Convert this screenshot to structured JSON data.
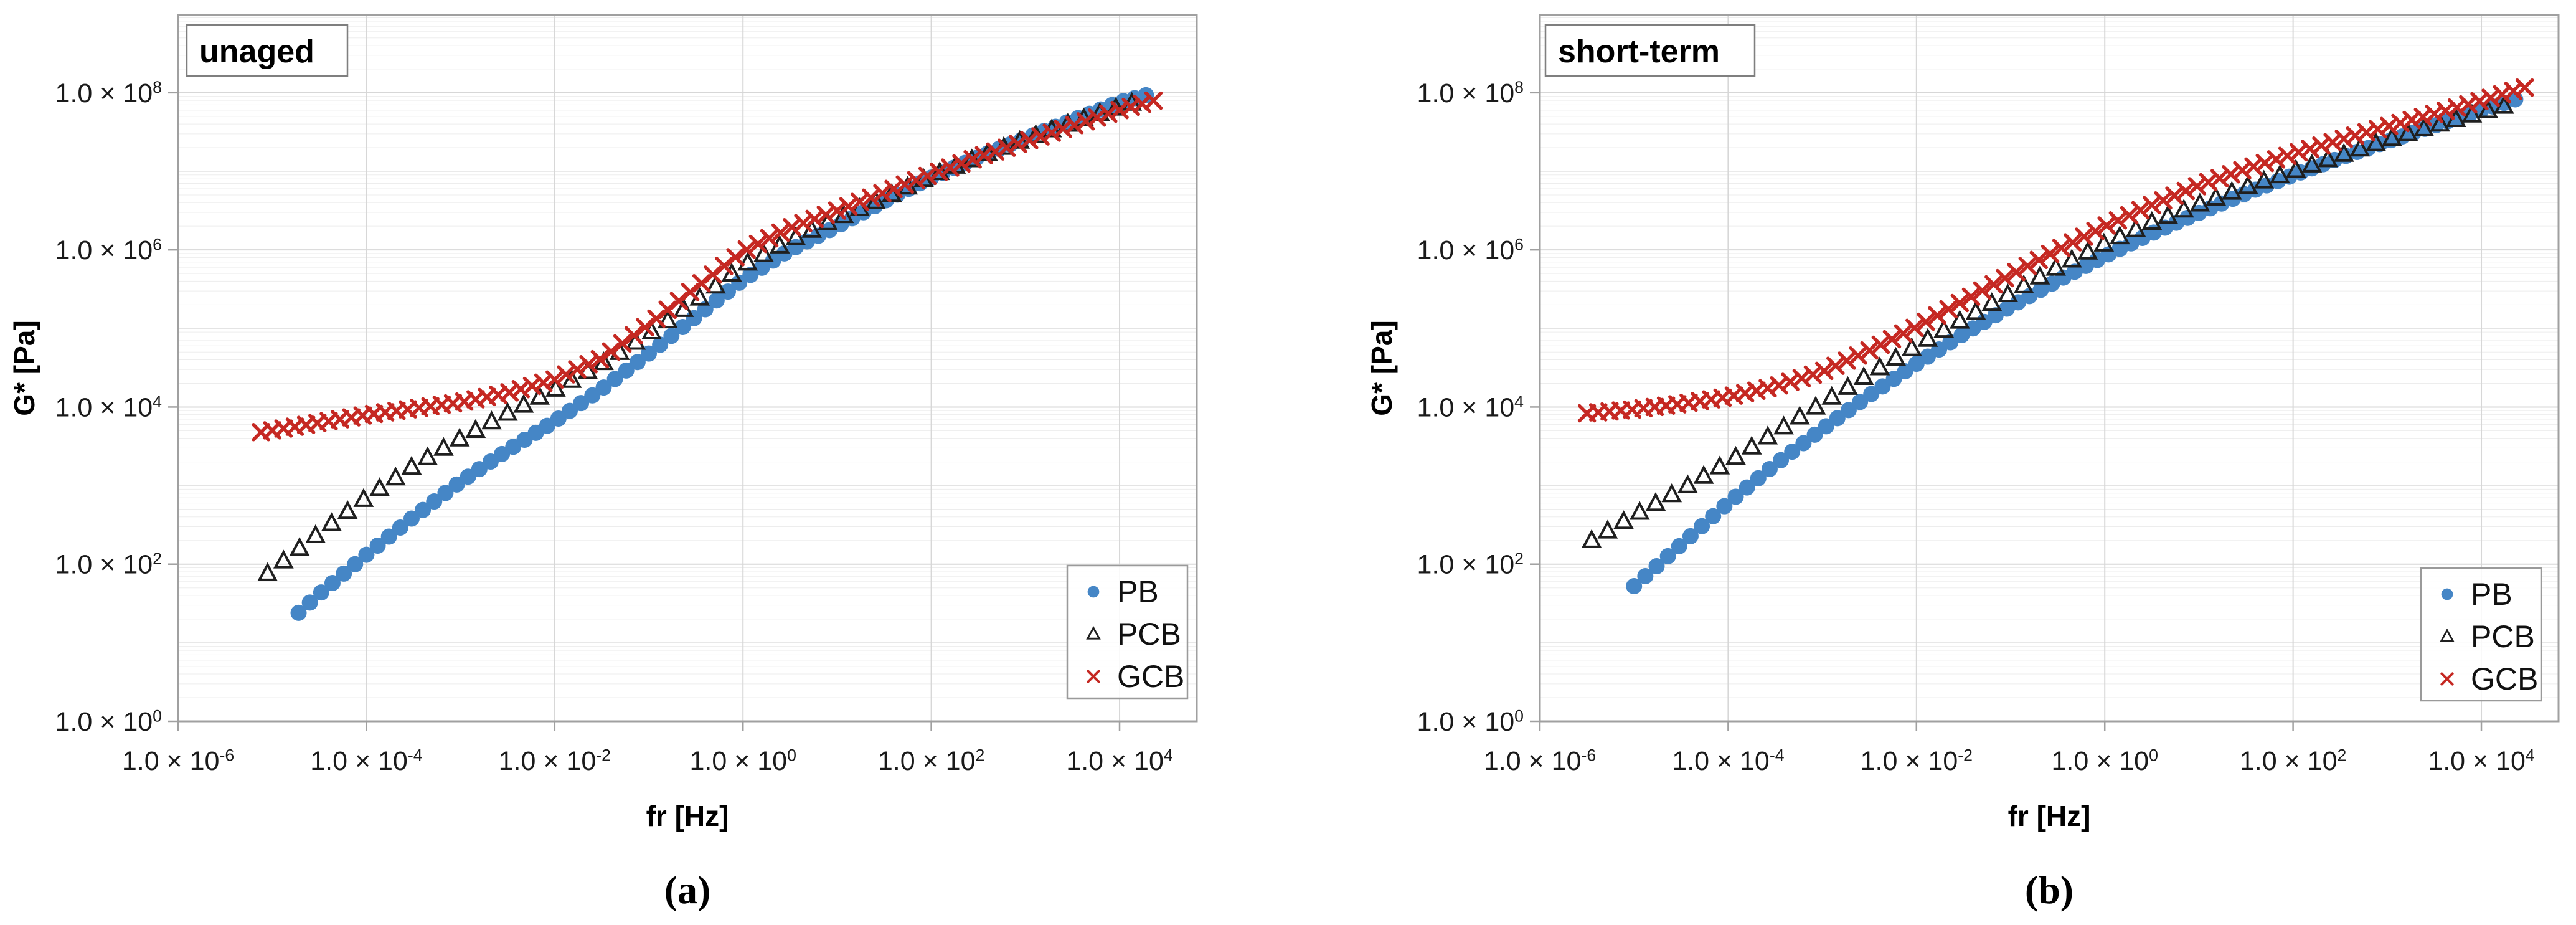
{
  "figure": {
    "captions": [
      {
        "label": "(a)"
      },
      {
        "label": "(b)"
      }
    ]
  },
  "shared": {
    "x_axis_title": "fr [Hz]",
    "y_axis_title": "G* [Pa]",
    "tick_mantissa": "1.0 × 10",
    "legend_labels": [
      "PB",
      "PCB",
      "GCB"
    ],
    "colors": {
      "pb_blue": "#4586C6",
      "pcb_black": "#1F1F1F",
      "gcb_red": "#C52822",
      "grid_minor": "#ededed",
      "grid_odd": "#e4e4e4",
      "grid_major": "#d7d7d7",
      "border": "#a0a0a0",
      "text": "#1a1a1a"
    }
  },
  "chart_data": [
    {
      "type": "scatter",
      "title": "unaged",
      "xlabel": "fr [Hz]",
      "ylabel": "G* [Pa]",
      "x_scale": "log10",
      "y_scale": "log10",
      "xlim_exp": [
        -6,
        4.82
      ],
      "ylim_exp": [
        0,
        8.99
      ],
      "x_ticks_exp": [
        -6,
        -4,
        -2,
        0,
        2,
        4
      ],
      "y_ticks_exp": [
        0,
        2,
        4,
        6,
        8
      ],
      "minor_log_gridlines": true,
      "legend_position": "bottom-right",
      "series": [
        {
          "name": "PB",
          "marker": "circle",
          "color": "#4586C6",
          "step_log10": 0.12,
          "anchors_log10": [
            [
              -4.72,
              1.38
            ],
            [
              -4.5,
              1.62
            ],
            [
              -4.0,
              2.12
            ],
            [
              -3.5,
              2.6
            ],
            [
              -3.0,
              3.05
            ],
            [
              -2.5,
              3.45
            ],
            [
              -2.0,
              3.82
            ],
            [
              -1.5,
              4.23
            ],
            [
              -1.0,
              4.68
            ],
            [
              -0.5,
              5.15
            ],
            [
              0.0,
              5.62
            ],
            [
              0.5,
              6.0
            ],
            [
              1.0,
              6.3
            ],
            [
              1.5,
              6.62
            ],
            [
              2.0,
              6.92
            ],
            [
              2.5,
              7.18
            ],
            [
              3.0,
              7.42
            ],
            [
              3.5,
              7.65
            ],
            [
              4.0,
              7.88
            ],
            [
              4.38,
              8.0
            ]
          ]
        },
        {
          "name": "PCB",
          "marker": "triangle-open",
          "color": "#1F1F1F",
          "step_log10": 0.17,
          "anchors_log10": [
            [
              -5.05,
              1.88
            ],
            [
              -4.5,
              2.4
            ],
            [
              -4.0,
              2.85
            ],
            [
              -3.5,
              3.25
            ],
            [
              -3.0,
              3.6
            ],
            [
              -2.5,
              3.92
            ],
            [
              -2.0,
              4.22
            ],
            [
              -1.5,
              4.55
            ],
            [
              -1.0,
              4.93
            ],
            [
              -0.5,
              5.35
            ],
            [
              0.0,
              5.8
            ],
            [
              0.5,
              6.12
            ],
            [
              1.0,
              6.4
            ],
            [
              1.5,
              6.66
            ],
            [
              2.0,
              6.94
            ],
            [
              2.5,
              7.18
            ],
            [
              3.0,
              7.41
            ],
            [
              3.5,
              7.62
            ],
            [
              4.0,
              7.82
            ],
            [
              4.28,
              7.92
            ]
          ]
        },
        {
          "name": "GCB",
          "marker": "x",
          "color": "#C52822",
          "step_log10": 0.12,
          "anchors_log10": [
            [
              -5.12,
              3.68
            ],
            [
              -4.5,
              3.8
            ],
            [
              -4.0,
              3.9
            ],
            [
              -3.5,
              3.98
            ],
            [
              -3.0,
              4.06
            ],
            [
              -2.5,
              4.18
            ],
            [
              -2.0,
              4.35
            ],
            [
              -1.5,
              4.62
            ],
            [
              -1.0,
              5.05
            ],
            [
              -0.5,
              5.52
            ],
            [
              0.0,
              5.98
            ],
            [
              0.5,
              6.28
            ],
            [
              1.0,
              6.5
            ],
            [
              1.5,
              6.73
            ],
            [
              2.0,
              6.96
            ],
            [
              2.5,
              7.18
            ],
            [
              3.0,
              7.38
            ],
            [
              3.5,
              7.58
            ],
            [
              4.0,
              7.78
            ],
            [
              4.45,
              7.93
            ]
          ]
        }
      ]
    },
    {
      "type": "scatter",
      "title": "short-term",
      "xlabel": "fr [Hz]",
      "ylabel": "G* [Pa]",
      "x_scale": "log10",
      "y_scale": "log10",
      "xlim_exp": [
        -6,
        4.82
      ],
      "ylim_exp": [
        0,
        8.99
      ],
      "x_ticks_exp": [
        -6,
        -4,
        -2,
        0,
        2,
        4
      ],
      "y_ticks_exp": [
        0,
        2,
        4,
        6,
        8
      ],
      "minor_log_gridlines": true,
      "legend_position": "bottom-right",
      "series": [
        {
          "name": "PB",
          "marker": "circle",
          "color": "#4586C6",
          "step_log10": 0.12,
          "anchors_log10": [
            [
              -5.0,
              1.72
            ],
            [
              -4.5,
              2.25
            ],
            [
              -4.0,
              2.78
            ],
            [
              -3.5,
              3.27
            ],
            [
              -3.0,
              3.72
            ],
            [
              -2.5,
              4.15
            ],
            [
              -2.0,
              4.55
            ],
            [
              -1.5,
              4.93
            ],
            [
              -1.0,
              5.28
            ],
            [
              -0.5,
              5.61
            ],
            [
              0.0,
              5.92
            ],
            [
              0.5,
              6.21
            ],
            [
              1.0,
              6.47
            ],
            [
              1.5,
              6.72
            ],
            [
              2.0,
              6.95
            ],
            [
              2.5,
              7.17
            ],
            [
              3.0,
              7.38
            ],
            [
              3.5,
              7.58
            ],
            [
              4.0,
              7.78
            ],
            [
              4.45,
              7.95
            ]
          ]
        },
        {
          "name": "PCB",
          "marker": "triangle-open",
          "color": "#1F1F1F",
          "step_log10": 0.17,
          "anchors_log10": [
            [
              -5.45,
              2.3
            ],
            [
              -5.0,
              2.62
            ],
            [
              -4.5,
              2.95
            ],
            [
              -4.0,
              3.3
            ],
            [
              -3.5,
              3.68
            ],
            [
              -3.0,
              4.05
            ],
            [
              -2.5,
              4.42
            ],
            [
              -2.0,
              4.78
            ],
            [
              -1.5,
              5.12
            ],
            [
              -1.0,
              5.45
            ],
            [
              -0.5,
              5.78
            ],
            [
              0.0,
              6.08
            ],
            [
              0.5,
              6.35
            ],
            [
              1.0,
              6.58
            ],
            [
              1.5,
              6.8
            ],
            [
              2.0,
              7.0
            ],
            [
              2.5,
              7.2
            ],
            [
              3.0,
              7.4
            ],
            [
              3.5,
              7.58
            ],
            [
              4.0,
              7.75
            ],
            [
              4.4,
              7.88
            ]
          ]
        },
        {
          "name": "GCB",
          "marker": "x",
          "color": "#C52822",
          "step_log10": 0.12,
          "anchors_log10": [
            [
              -5.5,
              3.92
            ],
            [
              -5.0,
              3.97
            ],
            [
              -4.5,
              4.04
            ],
            [
              -4.0,
              4.13
            ],
            [
              -3.5,
              4.26
            ],
            [
              -3.0,
              4.45
            ],
            [
              -2.5,
              4.72
            ],
            [
              -2.0,
              5.02
            ],
            [
              -1.5,
              5.35
            ],
            [
              -1.0,
              5.68
            ],
            [
              -0.5,
              6.0
            ],
            [
              0.0,
              6.3
            ],
            [
              0.5,
              6.57
            ],
            [
              1.0,
              6.82
            ],
            [
              1.5,
              7.03
            ],
            [
              2.0,
              7.22
            ],
            [
              2.5,
              7.4
            ],
            [
              3.0,
              7.57
            ],
            [
              3.5,
              7.73
            ],
            [
              4.0,
              7.9
            ],
            [
              4.5,
              8.08
            ]
          ]
        }
      ]
    }
  ]
}
